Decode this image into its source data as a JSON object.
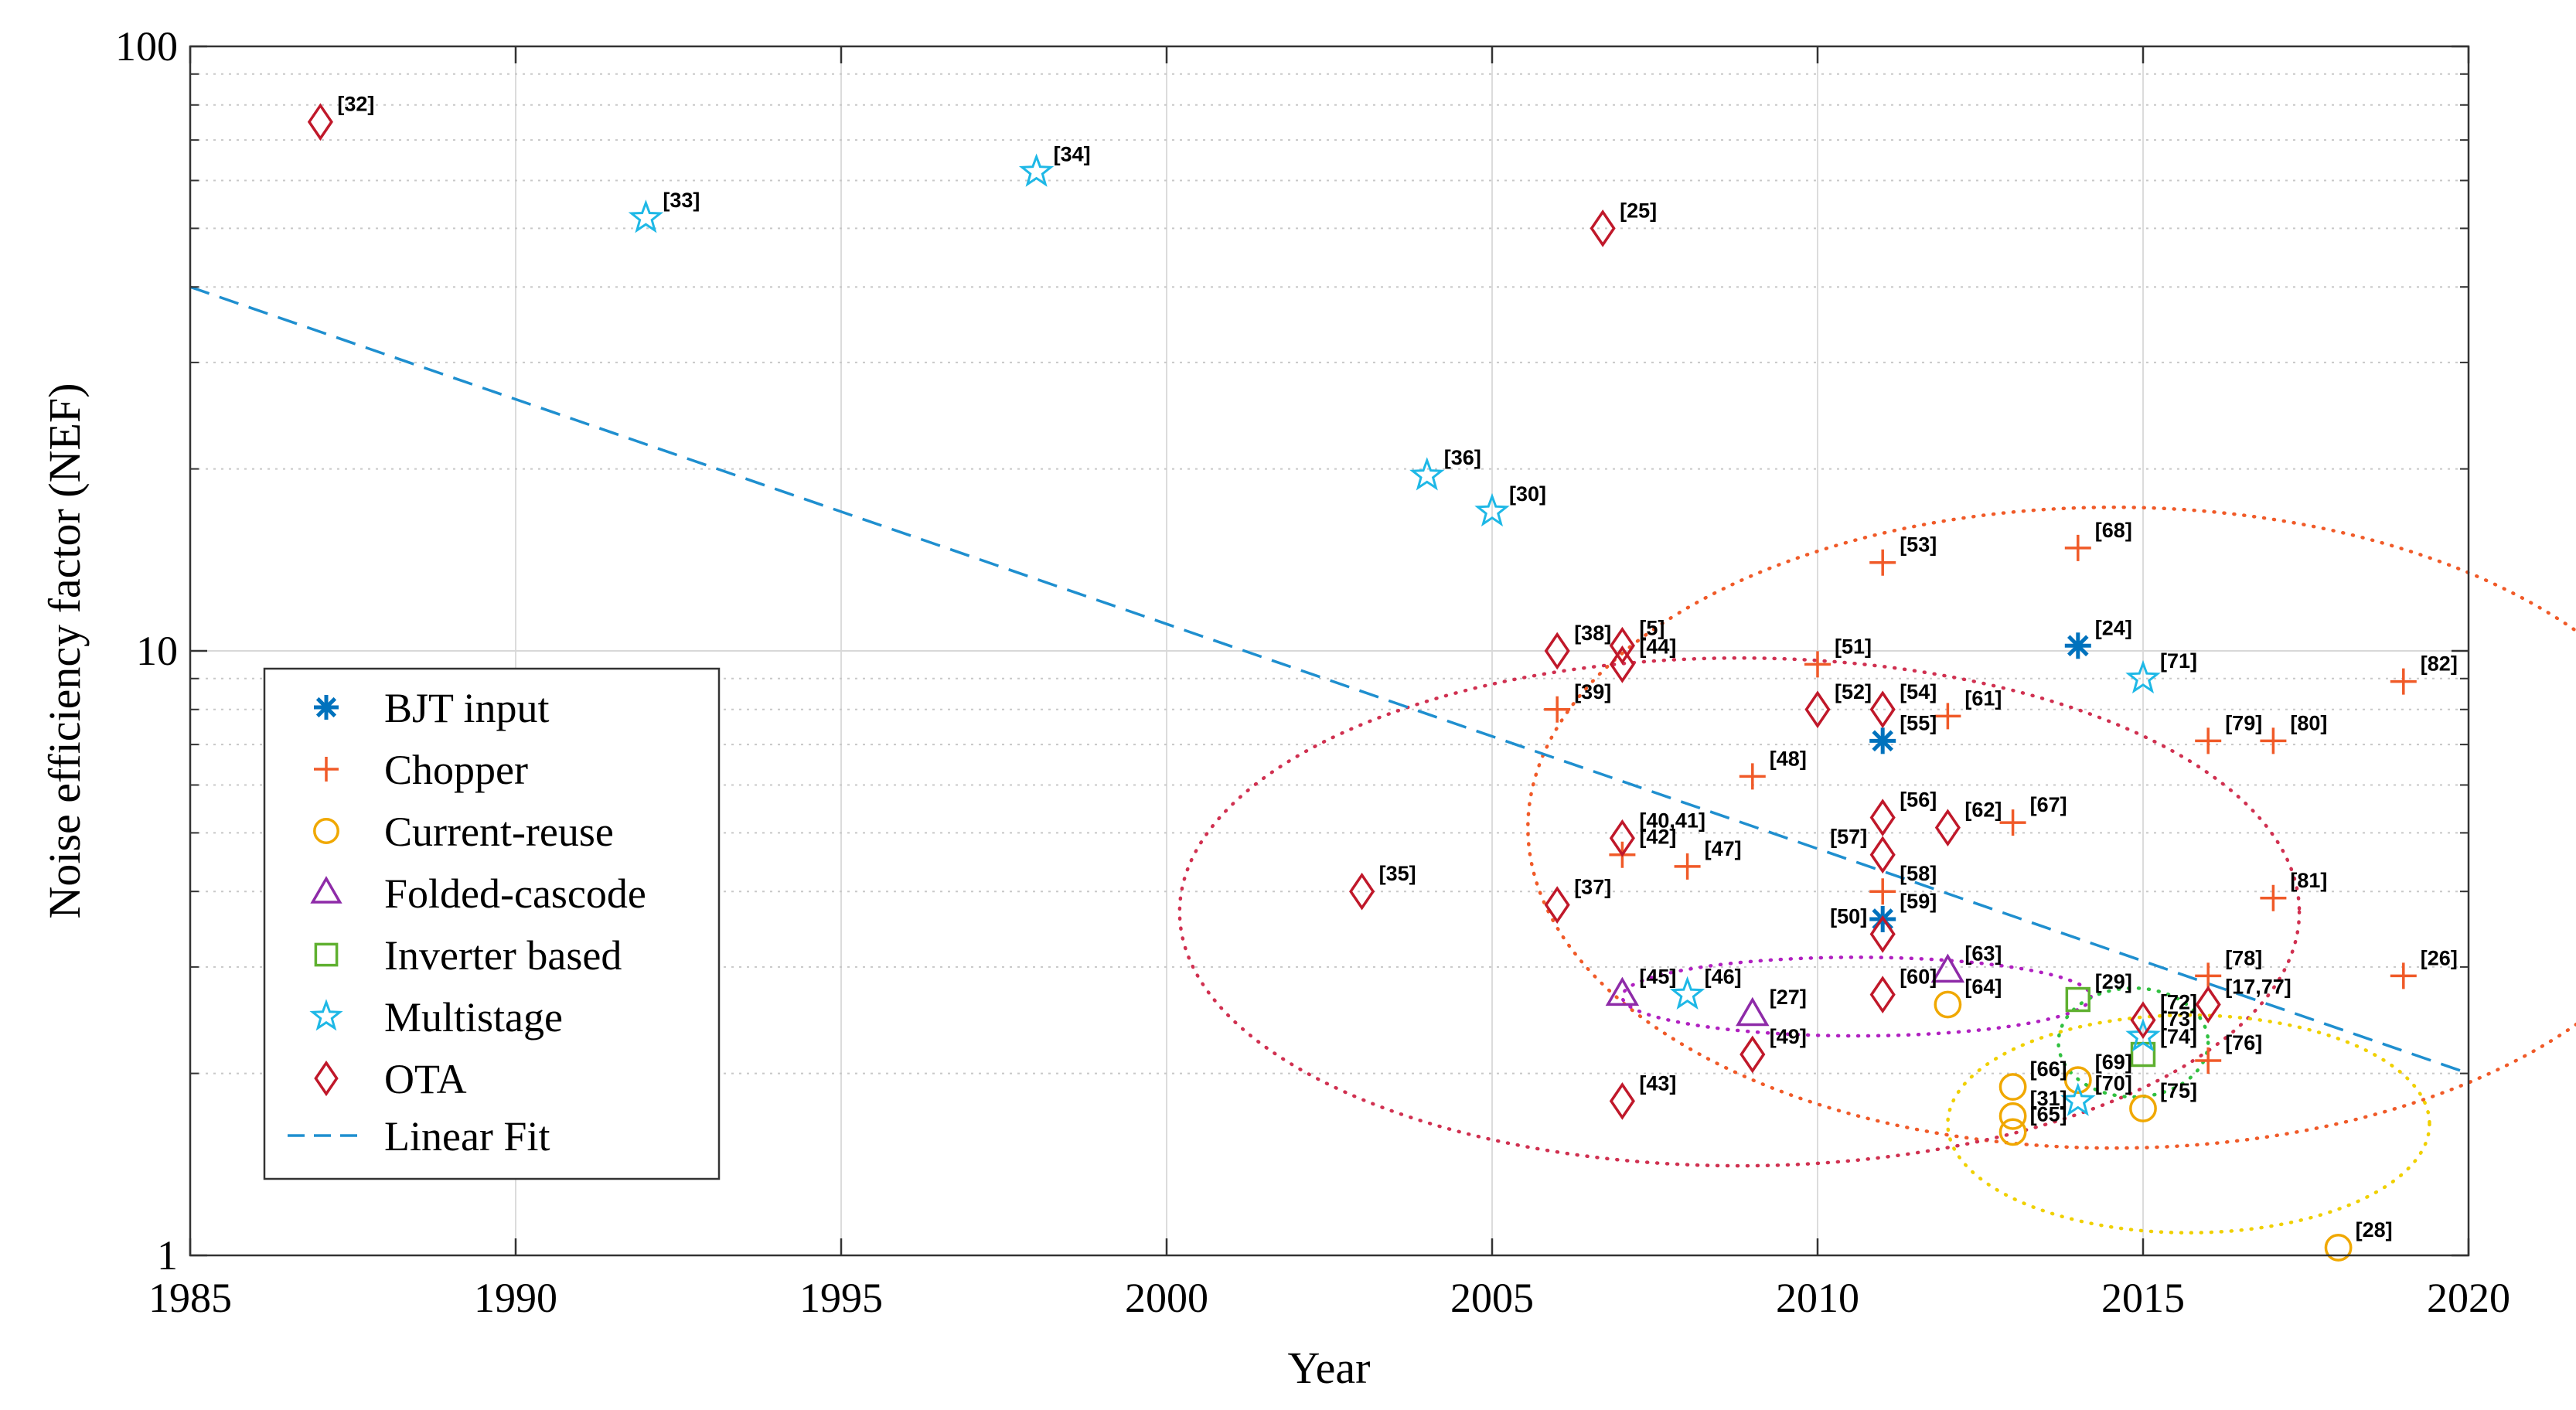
{
  "chart_data": {
    "type": "scatter",
    "title": "",
    "xlabel": "Year",
    "ylabel": "Noise efficiency factor (NEF)",
    "xlim": [
      1985,
      2020
    ],
    "ylim": [
      1,
      100
    ],
    "yscale": "log",
    "grid": true,
    "legend_position": "lower-left",
    "x_ticks": [
      "1985",
      "1990",
      "1995",
      "2000",
      "2005",
      "2010",
      "2015",
      "2020"
    ],
    "y_ticks": [
      "1",
      "10",
      "100"
    ],
    "series": [
      {
        "name": "BJT input",
        "marker": "asterisk",
        "color": "#0072BD",
        "points": [
          {
            "x": 2014,
            "y": 10.2,
            "label": "[24]"
          },
          {
            "x": 2011,
            "y": 7.1,
            "label": "[55]"
          },
          {
            "x": 2011,
            "y": 3.6,
            "label": "[59]"
          }
        ]
      },
      {
        "name": "Chopper",
        "marker": "plus",
        "color": "#F05A28",
        "points": [
          {
            "x": 2011,
            "y": 14.0,
            "label": "[53]"
          },
          {
            "x": 2014,
            "y": 14.8,
            "label": "[68]"
          },
          {
            "x": 2010,
            "y": 9.5,
            "label": "[51]"
          },
          {
            "x": 2006,
            "y": 8.0,
            "label": "[39]"
          },
          {
            "x": 2012,
            "y": 7.8,
            "label": "[61]"
          },
          {
            "x": 2016,
            "y": 7.1,
            "label": "[79]"
          },
          {
            "x": 2017,
            "y": 7.1,
            "label": "[80]"
          },
          {
            "x": 2019,
            "y": 8.9,
            "label": "[82]"
          },
          {
            "x": 2009,
            "y": 6.2,
            "label": "[48]"
          },
          {
            "x": 2013,
            "y": 5.2,
            "label": "[67]"
          },
          {
            "x": 2007,
            "y": 4.6,
            "label": "[42]"
          },
          {
            "x": 2008,
            "y": 4.4,
            "label": "[47]"
          },
          {
            "x": 2011,
            "y": 4.0,
            "label": "[58]"
          },
          {
            "x": 2017,
            "y": 3.9,
            "label": "[81]"
          },
          {
            "x": 2016,
            "y": 2.9,
            "label": "[78]"
          },
          {
            "x": 2019,
            "y": 2.9,
            "label": "[26]"
          },
          {
            "x": 2016,
            "y": 2.1,
            "label": "[76]"
          }
        ]
      },
      {
        "name": "Current-reuse",
        "marker": "circle",
        "color": "#F0A800",
        "points": [
          {
            "x": 2012,
            "y": 2.6,
            "label": "[64]"
          },
          {
            "x": 2013,
            "y": 1.9,
            "label": "[66]"
          },
          {
            "x": 2014,
            "y": 1.95,
            "label": "[69]"
          },
          {
            "x": 2013,
            "y": 1.7,
            "label": "[31]"
          },
          {
            "x": 2013,
            "y": 1.6,
            "label": "[65]"
          },
          {
            "x": 2015,
            "y": 1.75,
            "label": "[75]"
          },
          {
            "x": 2018,
            "y": 1.03,
            "label": "[28]"
          }
        ]
      },
      {
        "name": "Folded-cascode",
        "marker": "triangle",
        "color": "#8E2BA8",
        "points": [
          {
            "x": 2007,
            "y": 2.7,
            "label": "[45]"
          },
          {
            "x": 2009,
            "y": 2.5,
            "label": "[27]"
          },
          {
            "x": 2012,
            "y": 2.95,
            "label": "[63]"
          }
        ]
      },
      {
        "name": "Inverter based",
        "marker": "square",
        "color": "#5FB030",
        "points": [
          {
            "x": 2014,
            "y": 2.65,
            "label": "[29]"
          },
          {
            "x": 2015,
            "y": 2.15,
            "label": "[74]"
          }
        ]
      },
      {
        "name": "Multistage",
        "marker": "star",
        "color": "#1EB8E6",
        "points": [
          {
            "x": 1992,
            "y": 52,
            "label": "[33]"
          },
          {
            "x": 1998,
            "y": 62,
            "label": "[34]"
          },
          {
            "x": 2004,
            "y": 19.5,
            "label": "[36]"
          },
          {
            "x": 2005,
            "y": 17,
            "label": "[30]"
          },
          {
            "x": 2015,
            "y": 9.0,
            "label": "[71]"
          },
          {
            "x": 2008,
            "y": 2.7,
            "label": "[46]"
          },
          {
            "x": 2015,
            "y": 2.3,
            "label": "[73]"
          },
          {
            "x": 2014,
            "y": 1.8,
            "label": "[70]"
          }
        ]
      },
      {
        "name": "OTA",
        "marker": "diamond",
        "color": "#C0182A",
        "points": [
          {
            "x": 1987,
            "y": 75,
            "label": "[32]"
          },
          {
            "x": 2006.7,
            "y": 50,
            "label": "[25]"
          },
          {
            "x": 2006,
            "y": 10,
            "label": "[38]"
          },
          {
            "x": 2007,
            "y": 10.2,
            "label": "[5]"
          },
          {
            "x": 2007,
            "y": 9.5,
            "label": "[44]"
          },
          {
            "x": 2010,
            "y": 8.0,
            "label": "[52]"
          },
          {
            "x": 2011,
            "y": 8.0,
            "label": "[54]"
          },
          {
            "x": 2011,
            "y": 5.3,
            "label": "[56]"
          },
          {
            "x": 2012,
            "y": 5.1,
            "label": "[62]"
          },
          {
            "x": 2007,
            "y": 4.9,
            "label": "[40,41]"
          },
          {
            "x": 2011,
            "y": 4.6,
            "label": "[57]"
          },
          {
            "x": 2003,
            "y": 4.0,
            "label": "[35]"
          },
          {
            "x": 2006,
            "y": 3.8,
            "label": "[37]"
          },
          {
            "x": 2011,
            "y": 3.4,
            "label": "[50]"
          },
          {
            "x": 2011,
            "y": 2.7,
            "label": "[60]"
          },
          {
            "x": 2015,
            "y": 2.45,
            "label": "[72]"
          },
          {
            "x": 2016,
            "y": 2.6,
            "label": "[17,77]"
          },
          {
            "x": 2009,
            "y": 2.15,
            "label": "[49]"
          },
          {
            "x": 2007,
            "y": 1.8,
            "label": "[43]"
          }
        ]
      }
    ],
    "linear_fit": {
      "name": "Linear Fit",
      "color": "#1F8FCF",
      "x": [
        1985,
        2020
      ],
      "y": [
        40,
        2
      ]
    },
    "ellipses": [
      {
        "color": "#F05A28",
        "center": [
          2014.55,
          5.1
        ],
        "x_radius": 9.0,
        "y_decades_radius": 0.53
      },
      {
        "color": "#D03050",
        "center": [
          2008.8,
          3.7
        ],
        "x_radius": 8.6,
        "y_decades_radius": 0.42
      },
      {
        "color": "#B020C0",
        "center": [
          2010.6,
          2.68
        ],
        "x_radius": 3.6,
        "y_decades_radius": 0.065
      },
      {
        "color": "#F0D000",
        "center": [
          2015.7,
          1.65
        ],
        "x_radius": 3.7,
        "y_decades_radius": 0.18
      },
      {
        "color": "#30C040",
        "center": [
          2014.85,
          2.25
        ],
        "x_radius": 1.15,
        "y_decades_radius": 0.09
      }
    ]
  }
}
